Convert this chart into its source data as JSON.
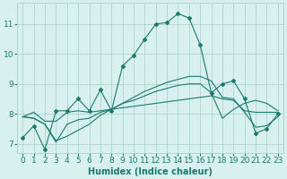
{
  "x": [
    0,
    1,
    2,
    3,
    4,
    5,
    6,
    7,
    8,
    9,
    10,
    11,
    12,
    13,
    14,
    15,
    16,
    17,
    18,
    19,
    20,
    21,
    22,
    23
  ],
  "line1": [
    7.2,
    7.6,
    6.8,
    8.1,
    8.1,
    8.5,
    8.1,
    8.8,
    8.1,
    9.6,
    9.95,
    10.5,
    11.0,
    11.05,
    11.35,
    11.2,
    10.3,
    8.7,
    9.0,
    9.1,
    8.5,
    7.35,
    7.5,
    8.0
  ],
  "line2": [
    7.9,
    8.05,
    7.75,
    7.75,
    8.05,
    8.1,
    8.05,
    8.1,
    8.15,
    8.2,
    8.25,
    8.3,
    8.35,
    8.4,
    8.45,
    8.5,
    8.55,
    8.6,
    8.5,
    8.45,
    8.1,
    8.05,
    8.05,
    8.05
  ],
  "line3": [
    7.9,
    7.85,
    7.65,
    7.05,
    7.65,
    7.8,
    7.85,
    8.05,
    8.15,
    8.35,
    8.55,
    8.75,
    8.9,
    9.05,
    9.15,
    9.25,
    9.25,
    9.1,
    8.55,
    8.5,
    8.05,
    7.55,
    7.6,
    7.9
  ],
  "line4": [
    7.9,
    7.85,
    7.65,
    7.1,
    7.25,
    7.45,
    7.65,
    7.95,
    8.15,
    8.35,
    8.45,
    8.6,
    8.75,
    8.85,
    8.95,
    9.0,
    9.0,
    8.7,
    7.85,
    8.15,
    8.35,
    8.45,
    8.35,
    8.1
  ],
  "line_color": "#1a7a6e",
  "bg_color": "#d8f0ee",
  "grid_color": "#a8ceca",
  "ylim": [
    6.7,
    11.7
  ],
  "yticks": [
    7,
    8,
    9,
    10,
    11
  ],
  "xticks": [
    0,
    1,
    2,
    3,
    4,
    5,
    6,
    7,
    8,
    9,
    10,
    11,
    12,
    13,
    14,
    15,
    16,
    17,
    18,
    19,
    20,
    21,
    22,
    23
  ],
  "xlabel": "Humidex (Indice chaleur)",
  "xlabel_fontsize": 7,
  "tick_fontsize": 6.5
}
